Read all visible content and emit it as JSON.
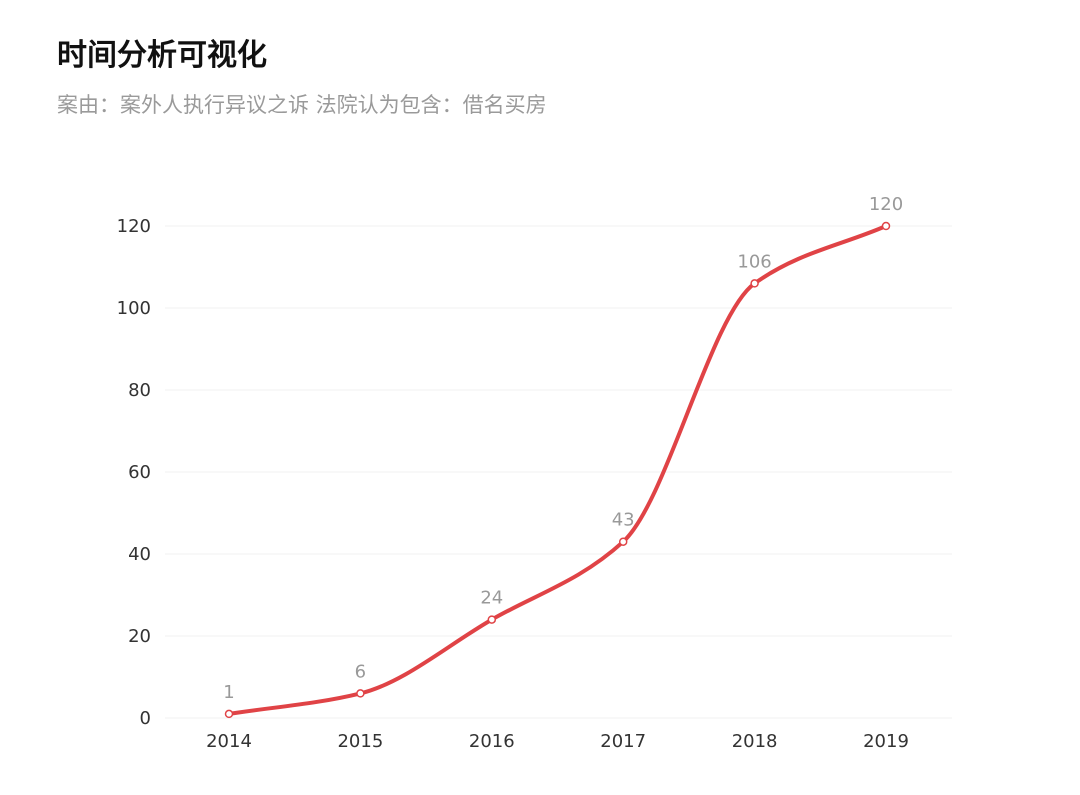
{
  "title": "时间分析可视化",
  "subtitle": "案由：案外人执行异议之诉  法院认为包含：借名买房",
  "colors": {
    "line": "#e04346",
    "marker_fill": "#ffffff",
    "grid": "#f2f2f2",
    "data_label": "#999999",
    "tick_label": "#333333"
  },
  "chart_data": {
    "type": "line",
    "smooth": true,
    "categories": [
      "2014",
      "2015",
      "2016",
      "2017",
      "2018",
      "2019"
    ],
    "series": [
      {
        "values": [
          1,
          6,
          24,
          43,
          106,
          120
        ]
      }
    ],
    "y_ticks": [
      0,
      20,
      40,
      60,
      80,
      100,
      120
    ],
    "ylim": [
      0,
      120
    ],
    "grid": true,
    "data_labels": true,
    "legend": "none"
  }
}
